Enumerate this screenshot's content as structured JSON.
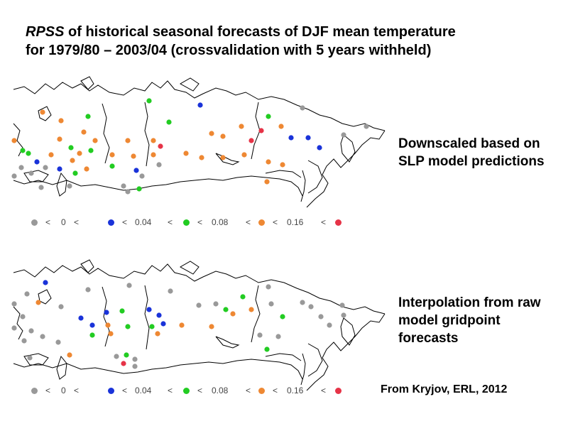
{
  "title": {
    "italic_prefix": "RPSS",
    "line1_rest": " of historical seasonal forecasts of DJF mean temperature",
    "line2": "for 1979/80 – 2003/04 (crossvalidation with 5 years withheld)"
  },
  "panels": [
    {
      "label": "Downscaled based on SLP model predictions"
    },
    {
      "label": "Interpolation from raw model gridpoint forecasts"
    }
  ],
  "legend": {
    "classes": [
      {
        "name": "below-zero",
        "color": "#999999"
      },
      {
        "name": "0-0.04",
        "color": "#1a33d9"
      },
      {
        "name": "0.04-0.08",
        "color": "#22cc22"
      },
      {
        "name": "0.08-0.16",
        "color": "#ee8833"
      },
      {
        "name": "above-0.16",
        "color": "#e63347"
      }
    ],
    "sep": "<",
    "thresholds": [
      "0",
      "0.04",
      "0.08",
      "0.16"
    ]
  },
  "source": "From Kryjov, ERL, 2012",
  "colors": {
    "gray": "#999999",
    "blue": "#1a33d9",
    "green": "#22cc22",
    "orange": "#ee8833",
    "red": "#e63347",
    "coast": "#000000"
  }
}
